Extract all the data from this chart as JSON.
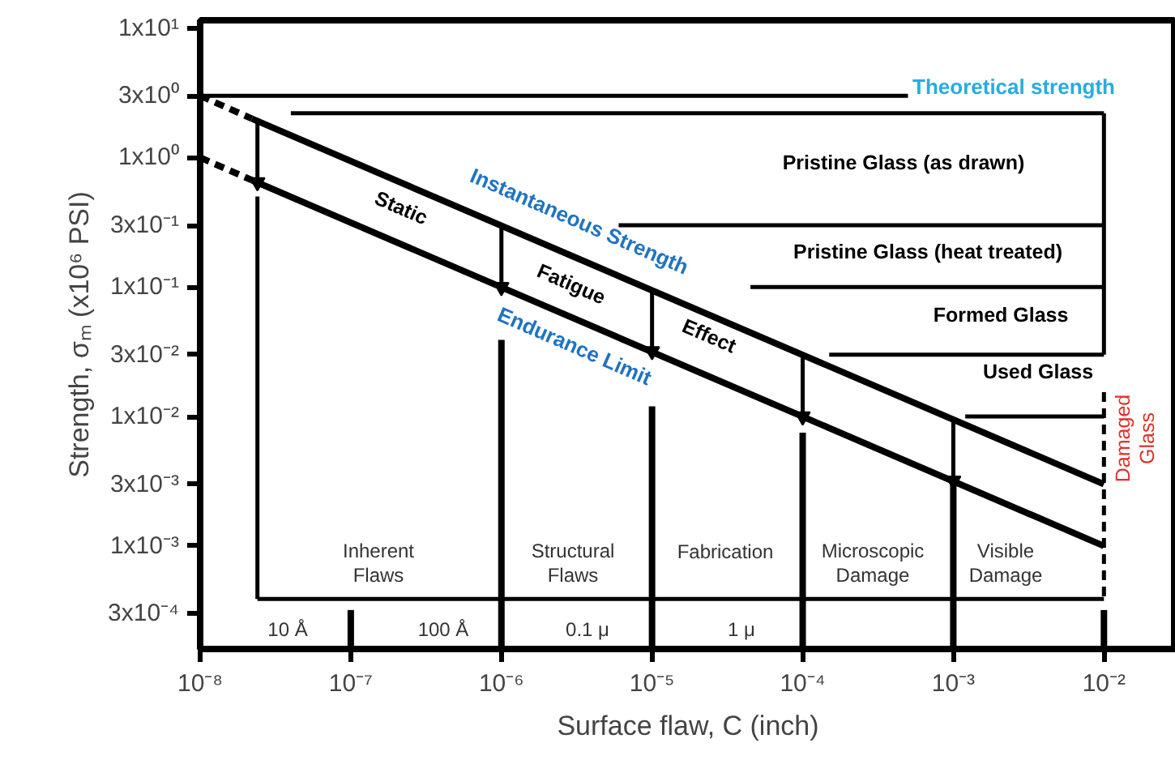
{
  "chart_data": {
    "type": "line",
    "xlabel": "Surface flaw, C (inch)",
    "ylabel": "Strength, σₘ (x10⁶ PSI)",
    "log": "xy",
    "grid": false,
    "marker": "none",
    "line_style": "solid",
    "xlim": [
      1e-08,
      0.03
    ],
    "ylim": [
      0.00016,
      11.5
    ],
    "xticks": [
      {
        "value": 1e-08,
        "label": "10⁻⁸"
      },
      {
        "value": 1e-07,
        "label": "10⁻⁷"
      },
      {
        "value": 1e-06,
        "label": "10⁻⁶"
      },
      {
        "value": 1e-05,
        "label": "10⁻⁵"
      },
      {
        "value": 0.0001,
        "label": "10⁻⁴"
      },
      {
        "value": 0.001,
        "label": "10⁻³"
      },
      {
        "value": 0.01,
        "label": "10⁻²"
      }
    ],
    "yticks": [
      {
        "value": 0.0003,
        "label": "3x10⁻⁴"
      },
      {
        "value": 0.001,
        "label": "1x10⁻³"
      },
      {
        "value": 0.003,
        "label": "3x10⁻³"
      },
      {
        "value": 0.01,
        "label": "1x10⁻²"
      },
      {
        "value": 0.03,
        "label": "3x10⁻²"
      },
      {
        "value": 0.1,
        "label": "1x10⁻¹"
      },
      {
        "value": 0.3,
        "label": "3x10⁻¹"
      },
      {
        "value": 1,
        "label": "1x10⁰"
      },
      {
        "value": 3,
        "label": "3x10⁰"
      },
      {
        "value": 10,
        "label": "1x10¹"
      }
    ],
    "series": [
      {
        "color": "#000000",
        "line_style": "dashed",
        "x": [
          1e-08,
          2.2e-08
        ],
        "values": [
          3,
          2.0
        ]
      },
      {
        "color": "#000000",
        "x": [
          2.2e-08,
          0.01
        ],
        "values": [
          2.0,
          0.003
        ]
      },
      {
        "color": "#000000",
        "line_style": "dashed",
        "x": [
          1e-08,
          2.2e-08
        ],
        "values": [
          1,
          0.67
        ]
      },
      {
        "color": "#000000",
        "x": [
          2.2e-08,
          0.01
        ],
        "values": [
          0.67,
          0.001
        ]
      },
      {
        "color": "#000000",
        "x": [
          1e-08,
          0.0005
        ],
        "values": [
          3,
          3
        ]
      },
      {
        "color": "#000000",
        "x": [
          4e-08,
          0.01
        ],
        "values": [
          2.2,
          2.2
        ]
      },
      {
        "color": "#000000",
        "x": [
          6e-06,
          0.01
        ],
        "values": [
          0.3,
          0.3
        ]
      },
      {
        "color": "#000000",
        "x": [
          4.5e-05,
          0.01
        ],
        "values": [
          0.1,
          0.1
        ]
      },
      {
        "color": "#000000",
        "x": [
          0.00015,
          0.01
        ],
        "values": [
          0.03,
          0.03
        ]
      },
      {
        "color": "#000000",
        "x": [
          0.0012,
          0.01
        ],
        "values": [
          0.01,
          0.01
        ]
      },
      {
        "color": "#000000",
        "marker": "triangle",
        "x": [
          2.4e-08,
          2.4e-08
        ],
        "values": [
          1.94,
          0.645
        ]
      },
      {
        "color": "#000000",
        "marker": "triangle",
        "x": [
          1e-06,
          1e-06
        ],
        "values": [
          0.3,
          0.1
        ]
      },
      {
        "color": "#000000",
        "marker": "triangle",
        "x": [
          1e-05,
          1e-05
        ],
        "values": [
          0.095,
          0.032
        ]
      },
      {
        "color": "#000000",
        "marker": "triangle",
        "x": [
          0.0001,
          0.0001
        ],
        "values": [
          0.03,
          0.01
        ]
      },
      {
        "color": "#000000",
        "marker": "triangle",
        "x": [
          0.001,
          0.001
        ],
        "values": [
          0.0095,
          0.0032
        ]
      },
      {
        "color": "#000000",
        "x": [
          2.4e-08,
          2.4e-08
        ],
        "values": [
          0.5,
          0.00039
        ]
      },
      {
        "color": "#000000",
        "x": [
          1e-06,
          1e-06
        ],
        "values": [
          0.039,
          0.00016
        ]
      },
      {
        "color": "#000000",
        "x": [
          1e-05,
          1e-05
        ],
        "values": [
          0.012,
          0.00016
        ]
      },
      {
        "color": "#000000",
        "x": [
          0.0001,
          0.0001
        ],
        "values": [
          0.0075,
          0.00016
        ]
      },
      {
        "color": "#000000",
        "x": [
          0.001,
          0.001
        ],
        "values": [
          0.0032,
          0.00016
        ]
      },
      {
        "color": "#000000",
        "x": [
          0.01,
          0.01
        ],
        "values": [
          2.2,
          0.03
        ]
      },
      {
        "color": "#000000",
        "line_style": "dashed",
        "x": [
          0.01,
          0.01
        ],
        "values": [
          0.0154,
          0.00039
        ]
      },
      {
        "color": "#000000",
        "x": [
          2.4e-08,
          0.01
        ],
        "values": [
          0.00039,
          0.00039
        ]
      },
      {
        "color": "#000000",
        "x": [
          1e-07,
          1e-07
        ],
        "values": [
          0.00032,
          0.00016
        ]
      },
      {
        "color": "#000000",
        "x": [
          0.01,
          0.01
        ],
        "values": [
          0.00032,
          0.00016
        ]
      }
    ],
    "annotations": [
      "Theoretical strength",
      "Pristine Glass (as drawn)",
      "Pristine Glass (heat treated)",
      "Formed Glass",
      "Used Glass",
      "Damaged\nGlass",
      "Instantaneous Strength",
      "Endurance Limit",
      "Static",
      "Fatigue",
      "Effect",
      "Inherent\nFlaws",
      "Structural\nFlaws",
      "Fabrication",
      "Microscopic\nDamage",
      "Visible\nDamage",
      "10 Å",
      "100 Å",
      "0.1 μ",
      "1 μ"
    ]
  }
}
